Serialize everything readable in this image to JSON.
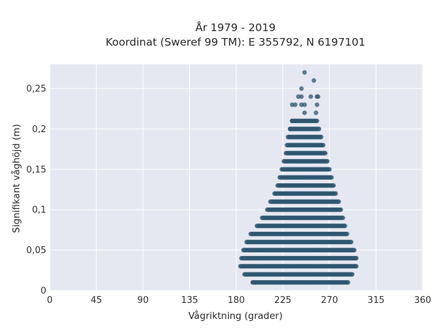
{
  "chart_data": {
    "type": "scatter",
    "title": "År 1979 - 2019",
    "subtitle": "Koordinat (Sweref 99 TM): E 355792, N 6197101",
    "xlabel": "Vågriktning (grader)",
    "ylabel": "Signifikant våghöjd (m)",
    "xlim": [
      0,
      360
    ],
    "ylim": [
      0,
      0.28
    ],
    "xticks": [
      0,
      45,
      90,
      135,
      180,
      225,
      270,
      315,
      360
    ],
    "xtick_labels": [
      "0",
      "45",
      "90",
      "135",
      "180",
      "225",
      "270",
      "315",
      "360"
    ],
    "yticks": [
      0,
      0.05,
      0.1,
      0.15,
      0.2,
      0.25
    ],
    "ytick_labels": [
      "0",
      "0,05",
      "0,1",
      "0,15",
      "0,2",
      "0,25"
    ],
    "grid": true,
    "legend": "none",
    "colors": {
      "plot_background": "#e6e8f1",
      "grid": "#ffffff",
      "marker": "#2e5770"
    },
    "point_bands": [
      {
        "y": 0.01,
        "x_min": 196,
        "x_max": 288
      },
      {
        "y": 0.02,
        "x_min": 188,
        "x_max": 292
      },
      {
        "y": 0.03,
        "x_min": 184,
        "x_max": 296
      },
      {
        "y": 0.04,
        "x_min": 185,
        "x_max": 296
      },
      {
        "y": 0.05,
        "x_min": 187,
        "x_max": 294
      },
      {
        "y": 0.06,
        "x_min": 190,
        "x_max": 291
      },
      {
        "y": 0.07,
        "x_min": 194,
        "x_max": 287
      },
      {
        "y": 0.08,
        "x_min": 200,
        "x_max": 285
      },
      {
        "y": 0.09,
        "x_min": 205,
        "x_max": 283
      },
      {
        "y": 0.1,
        "x_min": 210,
        "x_max": 281
      },
      {
        "y": 0.11,
        "x_min": 213,
        "x_max": 279
      },
      {
        "y": 0.12,
        "x_min": 217,
        "x_max": 276
      },
      {
        "y": 0.13,
        "x_min": 220,
        "x_max": 274
      },
      {
        "y": 0.14,
        "x_min": 222,
        "x_max": 272
      },
      {
        "y": 0.15,
        "x_min": 224,
        "x_max": 270
      },
      {
        "y": 0.16,
        "x_min": 226,
        "x_max": 268
      },
      {
        "y": 0.17,
        "x_min": 228,
        "x_max": 266
      },
      {
        "y": 0.18,
        "x_min": 229,
        "x_max": 264
      },
      {
        "y": 0.19,
        "x_min": 230,
        "x_max": 262
      },
      {
        "y": 0.2,
        "x_min": 232,
        "x_max": 260
      },
      {
        "y": 0.21,
        "x_min": 234,
        "x_max": 258
      }
    ],
    "sparse_points": [
      {
        "x": 196,
        "y": 0.01
      },
      {
        "x": 232,
        "y": 0.2
      },
      {
        "x": 234,
        "y": 0.21
      },
      {
        "x": 246,
        "y": 0.22
      },
      {
        "x": 257,
        "y": 0.22
      },
      {
        "x": 234,
        "y": 0.23
      },
      {
        "x": 237,
        "y": 0.23
      },
      {
        "x": 243,
        "y": 0.23
      },
      {
        "x": 246,
        "y": 0.23
      },
      {
        "x": 258,
        "y": 0.23
      },
      {
        "x": 240,
        "y": 0.24
      },
      {
        "x": 243,
        "y": 0.24
      },
      {
        "x": 252,
        "y": 0.24
      },
      {
        "x": 258,
        "y": 0.24
      },
      {
        "x": 259,
        "y": 0.24
      },
      {
        "x": 243,
        "y": 0.25
      },
      {
        "x": 255,
        "y": 0.26
      },
      {
        "x": 246,
        "y": 0.27
      }
    ]
  }
}
